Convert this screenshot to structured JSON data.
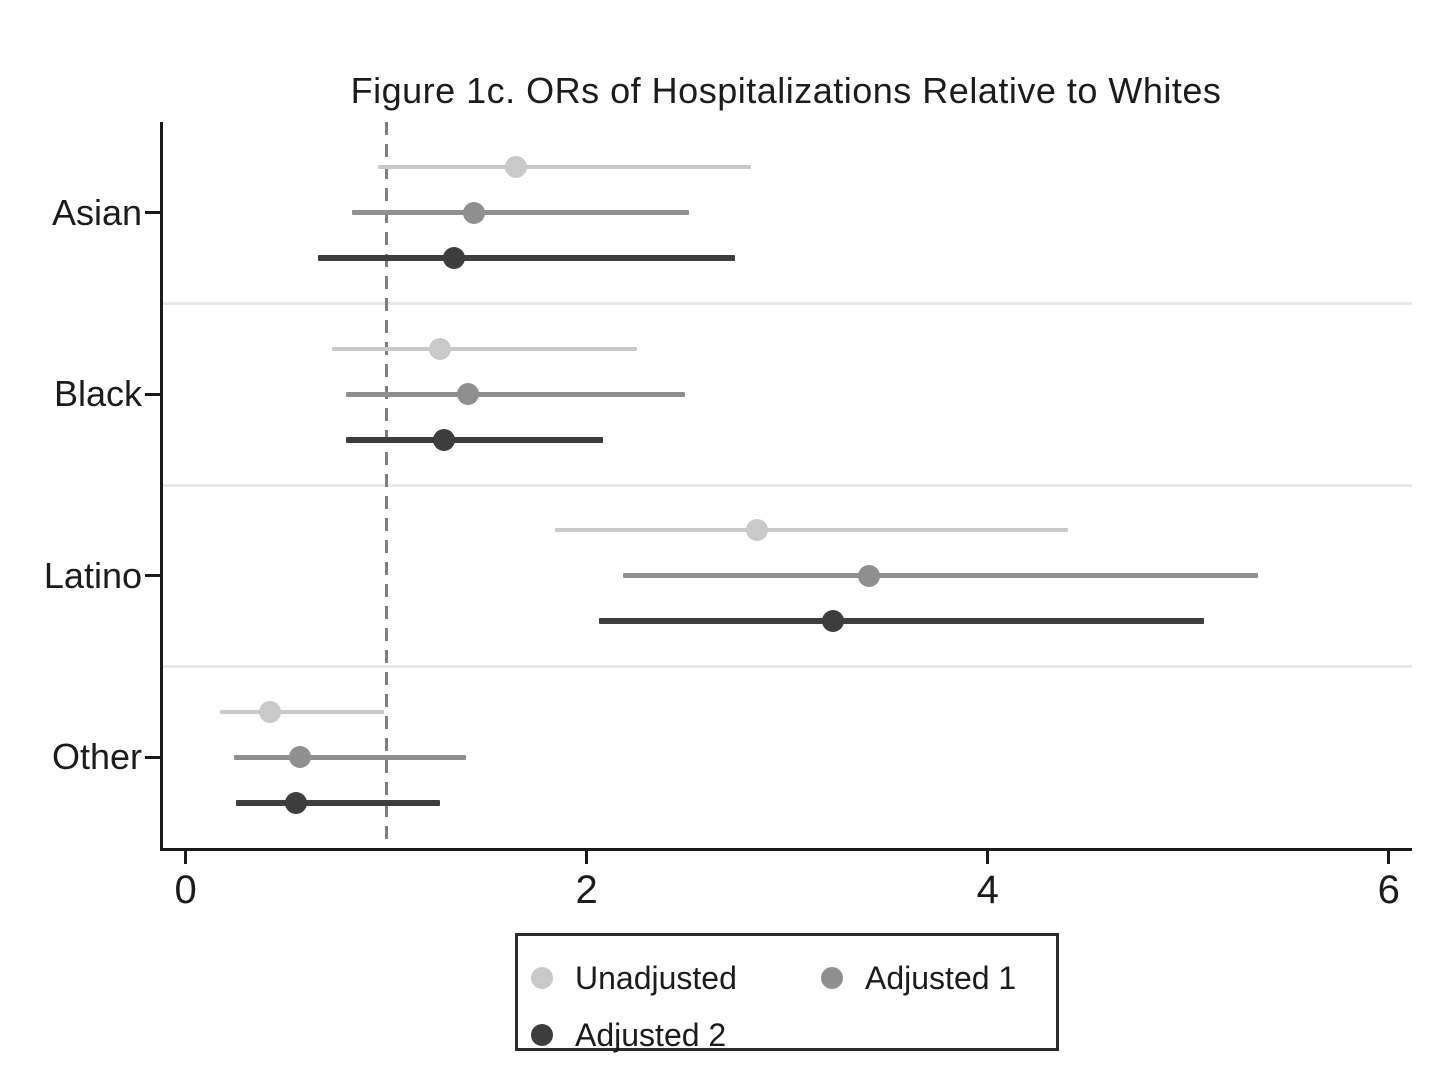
{
  "chart_data": {
    "type": "scatter",
    "subtype": "forest-plot-dot-ci",
    "title": "Figure 1c. ORs of Hospitalizations Relative to Whites",
    "xlabel": "",
    "ylabel": "",
    "categories": [
      "Asian",
      "Black",
      "Latino",
      "Other"
    ],
    "x_ticks": [
      "0",
      "2",
      "4",
      "6"
    ],
    "x_tick_values": [
      0,
      2,
      4,
      6
    ],
    "xlim": [
      -0.12,
      6.11
    ],
    "reference_line_x": 1,
    "grid": "category-band-separators",
    "legend_position": "bottom-box",
    "series": [
      {
        "name": "Unadjusted",
        "color": "#c9c9c9",
        "line_width": 4,
        "or": [
          1.65,
          1.27,
          2.85,
          0.42
        ],
        "ci_low": [
          0.96,
          0.73,
          1.84,
          0.17
        ],
        "ci_high": [
          2.82,
          2.25,
          4.4,
          0.99
        ]
      },
      {
        "name": "Adjusted 1",
        "color": "#8f8f8f",
        "line_width": 5,
        "or": [
          1.44,
          1.41,
          3.41,
          0.57
        ],
        "ci_low": [
          0.83,
          0.8,
          2.18,
          0.24
        ],
        "ci_high": [
          2.51,
          2.49,
          5.35,
          1.4
        ]
      },
      {
        "name": "Adjusted 2",
        "color": "#3d3d3d",
        "line_width": 6,
        "or": [
          1.34,
          1.29,
          3.23,
          0.55
        ],
        "ci_low": [
          0.66,
          0.8,
          2.06,
          0.25
        ],
        "ci_high": [
          2.74,
          2.08,
          5.08,
          1.27
        ]
      }
    ],
    "colors": {
      "axis": "#1a1a1a",
      "reference_line": "#7f7f7f",
      "band_separator": "#e8e8e8",
      "text": "#1c1c1c",
      "background": "#ffffff"
    }
  }
}
